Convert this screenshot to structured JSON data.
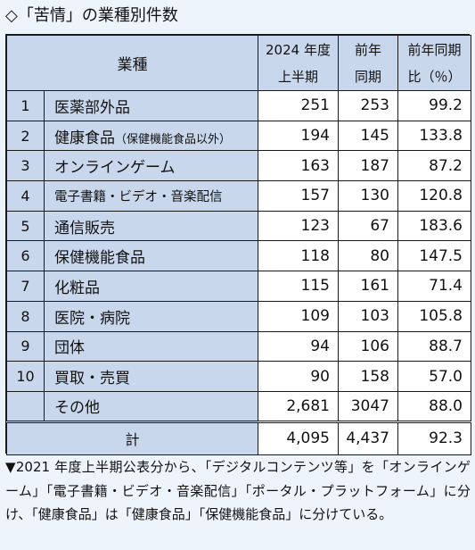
{
  "title": "◇「苦情」の業種別件数",
  "header": {
    "sector": "業種",
    "col1": [
      "2024 年度",
      "上半期"
    ],
    "col2": [
      "前年",
      "同期"
    ],
    "col3": [
      "前年同期",
      "比（％）"
    ]
  },
  "rows": [
    {
      "no": "1",
      "name": "医薬部外品",
      "sub": "",
      "v2024": "251",
      "prev": "253",
      "ratio": "99.2"
    },
    {
      "no": "2",
      "name": "健康食品",
      "sub": "（保健機能食品以外）",
      "v2024": "194",
      "prev": "145",
      "ratio": "133.8"
    },
    {
      "no": "3",
      "name": "オンラインゲーム",
      "sub": "",
      "v2024": "163",
      "prev": "187",
      "ratio": "87.2"
    },
    {
      "no": "4",
      "name": "電子書籍・ビデオ・音楽配信",
      "sub": "",
      "v2024": "157",
      "prev": "130",
      "ratio": "120.8"
    },
    {
      "no": "5",
      "name": "通信販売",
      "sub": "",
      "v2024": "123",
      "prev": "67",
      "ratio": "183.6"
    },
    {
      "no": "6",
      "name": "保健機能食品",
      "sub": "",
      "v2024": "118",
      "prev": "80",
      "ratio": "147.5"
    },
    {
      "no": "7",
      "name": "化粧品",
      "sub": "",
      "v2024": "115",
      "prev": "161",
      "ratio": "71.4"
    },
    {
      "no": "8",
      "name": "医院・病院",
      "sub": "",
      "v2024": "109",
      "prev": "103",
      "ratio": "105.8"
    },
    {
      "no": "9",
      "name": "団体",
      "sub": "",
      "v2024": "94",
      "prev": "106",
      "ratio": "88.7"
    },
    {
      "no": "10",
      "name": "買取・売買",
      "sub": "",
      "v2024": "90",
      "prev": "158",
      "ratio": "57.0"
    },
    {
      "no": "",
      "name": "その他",
      "sub": "",
      "v2024": "2,681",
      "prev": "3047",
      "ratio": "88.0"
    }
  ],
  "total": {
    "label": "計",
    "v2024": "4,095",
    "prev": "4,437",
    "ratio": "92.3"
  },
  "note": "▼2021 年度上半期公表分から、「デジタルコンテンツ等」を「オンラインゲーム」「電子書籍・ビデオ・音楽配信」「ポータル・プラットフォーム」に分け、「健康食品」は「健康食品」「保健機能食品」に分けている。"
}
